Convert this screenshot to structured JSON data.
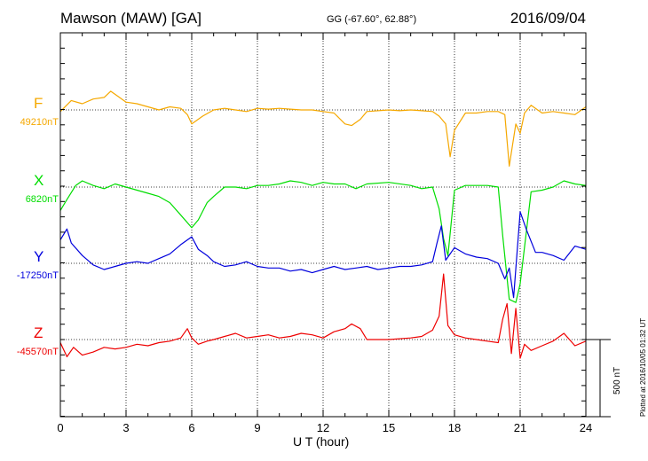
{
  "header": {
    "station": "Mawson (MAW)  [GA]",
    "coords": "GG (-67.60°,  62.88°)",
    "date": "2016/09/04"
  },
  "footer": {
    "xlabel": "U T (hour)",
    "plotted": "Plotted at 2016/10/05 01:32 UT",
    "scale_label": "500 nT"
  },
  "chart_data": {
    "type": "line",
    "title": "Mawson (MAW)  [GA]",
    "xlabel": "U T (hour)",
    "ylabel": "",
    "xlim": [
      0,
      24
    ],
    "x_ticks": [
      "0",
      "3",
      "6",
      "9",
      "12",
      "15",
      "18",
      "21",
      "24"
    ],
    "grid": true,
    "scale_bar_nT": 500,
    "series": [
      {
        "name": "F",
        "baseline_label": "49210nT",
        "color": "#f5a800",
        "x": [
          0,
          0.5,
          1,
          1.5,
          2,
          2.3,
          2.7,
          3,
          3.5,
          4,
          4.5,
          5,
          5.5,
          5.8,
          6,
          6.5,
          7,
          7.5,
          8,
          8.5,
          9,
          9.5,
          10,
          10.5,
          11,
          11.5,
          12,
          12.5,
          13,
          13.3,
          13.7,
          14,
          15,
          15.5,
          16,
          16.5,
          17,
          17.3,
          17.6,
          17.8,
          18,
          18.5,
          19,
          19.5,
          20,
          20.3,
          20.5,
          20.8,
          21,
          21.2,
          21.5,
          22,
          22.5,
          23,
          23.5,
          24
        ],
        "y": [
          49200,
          49270,
          49250,
          49280,
          49290,
          49330,
          49290,
          49260,
          49250,
          49230,
          49210,
          49230,
          49220,
          49180,
          49120,
          49170,
          49210,
          49220,
          49210,
          49200,
          49220,
          49215,
          49220,
          49215,
          49210,
          49210,
          49200,
          49190,
          49120,
          49110,
          49150,
          49200,
          49210,
          49205,
          49210,
          49205,
          49200,
          49170,
          49120,
          48910,
          49080,
          49190,
          49190,
          49200,
          49200,
          49180,
          48850,
          49120,
          49060,
          49190,
          49240,
          49190,
          49200,
          49190,
          49180,
          49230
        ]
      },
      {
        "name": "X",
        "baseline_label": "6820nT",
        "color": "#00dd00",
        "x": [
          0,
          0.3,
          0.7,
          1,
          1.5,
          2,
          2.5,
          3,
          3.5,
          4,
          4.5,
          5,
          5.5,
          6,
          6.3,
          6.7,
          7,
          7.5,
          8,
          8.5,
          9,
          9.5,
          10,
          10.5,
          11,
          11.5,
          12,
          12.5,
          13,
          13.5,
          14,
          15,
          16,
          16.5,
          17,
          17.3,
          17.5,
          17.7,
          18,
          18.5,
          19,
          19.5,
          20,
          20.2,
          20.5,
          20.8,
          21,
          21.5,
          22,
          22.5,
          23,
          23.5,
          24
        ],
        "y": [
          6670,
          6740,
          6830,
          6860,
          6830,
          6810,
          6840,
          6820,
          6800,
          6780,
          6760,
          6720,
          6640,
          6560,
          6610,
          6720,
          6760,
          6820,
          6820,
          6810,
          6830,
          6830,
          6840,
          6860,
          6850,
          6830,
          6850,
          6840,
          6840,
          6810,
          6840,
          6850,
          6830,
          6810,
          6820,
          6680,
          6490,
          6380,
          6800,
          6830,
          6830,
          6830,
          6820,
          6510,
          6100,
          6080,
          6200,
          6790,
          6800,
          6820,
          6860,
          6840,
          6830
        ]
      },
      {
        "name": "Y",
        "baseline_label": "-17250nT",
        "color": "#0000dd",
        "x": [
          0,
          0.3,
          0.5,
          1,
          1.5,
          2,
          2.5,
          3,
          3.5,
          4,
          4.5,
          5,
          5.5,
          6,
          6.3,
          6.7,
          7,
          7.5,
          8,
          8.5,
          9,
          9.5,
          10,
          10.5,
          11,
          11.5,
          12,
          12.5,
          13,
          13.5,
          14,
          14.5,
          15,
          15.5,
          16,
          16.5,
          17,
          17.2,
          17.4,
          17.6,
          18,
          18.5,
          19,
          19.5,
          20,
          20.3,
          20.5,
          20.7,
          21,
          21.3,
          21.7,
          22,
          22.5,
          23,
          23.5,
          24
        ],
        "y": [
          -17100,
          -17030,
          -17120,
          -17200,
          -17260,
          -17290,
          -17270,
          -17250,
          -17240,
          -17250,
          -17220,
          -17190,
          -17130,
          -17080,
          -17160,
          -17200,
          -17240,
          -17270,
          -17260,
          -17240,
          -17270,
          -17280,
          -17280,
          -17300,
          -17290,
          -17310,
          -17290,
          -17270,
          -17290,
          -17280,
          -17270,
          -17290,
          -17280,
          -17270,
          -17270,
          -17260,
          -17240,
          -17120,
          -17010,
          -17230,
          -17150,
          -17190,
          -17210,
          -17220,
          -17250,
          -17350,
          -17280,
          -17470,
          -16920,
          -17040,
          -17180,
          -17180,
          -17200,
          -17230,
          -17140,
          -17160
        ]
      },
      {
        "name": "Z",
        "baseline_label": "-45570nT",
        "color": "#ee0000",
        "x": [
          0,
          0.3,
          0.6,
          1,
          1.5,
          2,
          2.5,
          3,
          3.5,
          4,
          4.5,
          5,
          5.5,
          5.8,
          6,
          6.3,
          6.7,
          7,
          7.5,
          8,
          8.5,
          9,
          9.5,
          10,
          10.5,
          11,
          11.5,
          12,
          12.5,
          13,
          13.3,
          13.7,
          14,
          15,
          16,
          16.5,
          17,
          17.3,
          17.5,
          17.7,
          18,
          18.5,
          19,
          19.5,
          20,
          20.2,
          20.4,
          20.6,
          20.8,
          21,
          21.2,
          21.5,
          22,
          22.5,
          23,
          23.5,
          24
        ],
        "y": [
          -45590,
          -45680,
          -45620,
          -45670,
          -45650,
          -45620,
          -45630,
          -45620,
          -45600,
          -45610,
          -45590,
          -45580,
          -45560,
          -45500,
          -45560,
          -45600,
          -45580,
          -45570,
          -45550,
          -45530,
          -45560,
          -45550,
          -45540,
          -45560,
          -45550,
          -45530,
          -45540,
          -45560,
          -45520,
          -45500,
          -45470,
          -45500,
          -45570,
          -45570,
          -45560,
          -45550,
          -45510,
          -45420,
          -45150,
          -45480,
          -45540,
          -45560,
          -45570,
          -45580,
          -45590,
          -45440,
          -45340,
          -45660,
          -45370,
          -45690,
          -45600,
          -45640,
          -45610,
          -45580,
          -45530,
          -45610,
          -45580
        ]
      }
    ]
  }
}
